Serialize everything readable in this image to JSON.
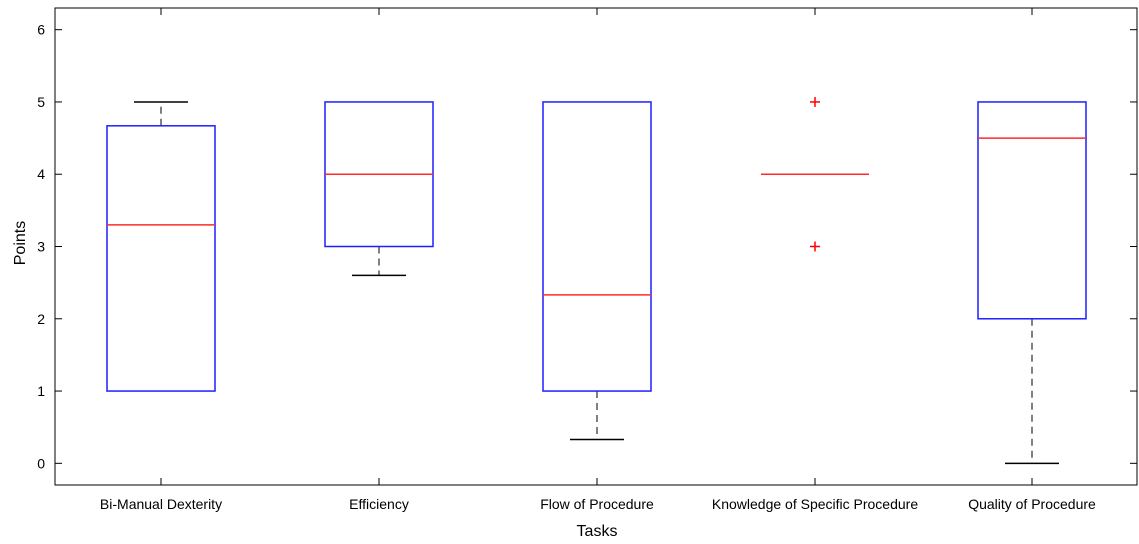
{
  "chart_data": {
    "type": "box",
    "xlabel": "Tasks",
    "ylabel": "Points",
    "ylim": [
      -0.3,
      6.3
    ],
    "yticks": [
      0,
      1,
      2,
      3,
      4,
      5,
      6
    ],
    "ytick_labels": [
      "0",
      "1",
      "2",
      "3",
      "4",
      "5",
      "6"
    ],
    "grid": false,
    "categories": [
      "Bi-Manual Dexterity",
      "Efficiency",
      "Flow of Procedure",
      "Knowledge of Specific Procedure",
      "Quality of Procedure"
    ],
    "boxes": [
      {
        "whisker_low": 1.0,
        "q1": 1.0,
        "median": 3.3,
        "q3": 4.67,
        "whisker_high": 5.0,
        "outliers": []
      },
      {
        "whisker_low": 2.6,
        "q1": 3.0,
        "median": 4.0,
        "q3": 5.0,
        "whisker_high": 5.0,
        "outliers": []
      },
      {
        "whisker_low": 0.33,
        "q1": 1.0,
        "median": 2.33,
        "q3": 5.0,
        "whisker_high": 5.0,
        "outliers": []
      },
      {
        "whisker_low": 4.0,
        "q1": 4.0,
        "median": 4.0,
        "q3": 4.0,
        "whisker_high": 4.0,
        "outliers": [
          5.0,
          3.0
        ]
      },
      {
        "whisker_low": 0.0,
        "q1": 2.0,
        "median": 4.5,
        "q3": 5.0,
        "whisker_high": 5.0,
        "outliers": []
      }
    ],
    "colors": {
      "box": "#1f1fff",
      "median": "#ff2a2a",
      "whisker": "#000000",
      "outlier": "#ff0000",
      "axis": "#000000"
    }
  }
}
